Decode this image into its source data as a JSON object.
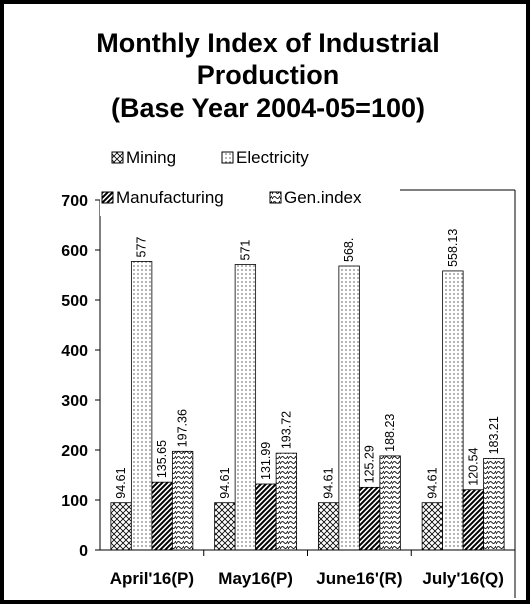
{
  "chart_data": {
    "type": "bar",
    "title": [
      "Monthly Index of Industrial",
      "Production",
      "(Base Year 2004-05=100)"
    ],
    "categories": [
      "April'16(P)",
      "May16(P)",
      "June16'(R)",
      "July'16(Q)"
    ],
    "series": [
      {
        "name": "Mining",
        "color": "#000000",
        "values": [
          94.61,
          94.61,
          94.61,
          94.61
        ]
      },
      {
        "name": "Electricity",
        "color": "#000000",
        "values": [
          577,
          571,
          568,
          558.13
        ],
        "value_labels": [
          "577",
          "571",
          "568.",
          "558.13"
        ]
      },
      {
        "name": "Manufacturing",
        "color": "#000000",
        "values": [
          135.65,
          131.99,
          125.29,
          120.54
        ]
      },
      {
        "name": "Gen.index",
        "color": "#000000",
        "values": [
          197.36,
          193.72,
          188.23,
          183.21
        ]
      }
    ],
    "ylim": [
      0,
      700
    ],
    "yticks": [
      0,
      100,
      200,
      300,
      400,
      500,
      600,
      700
    ]
  }
}
